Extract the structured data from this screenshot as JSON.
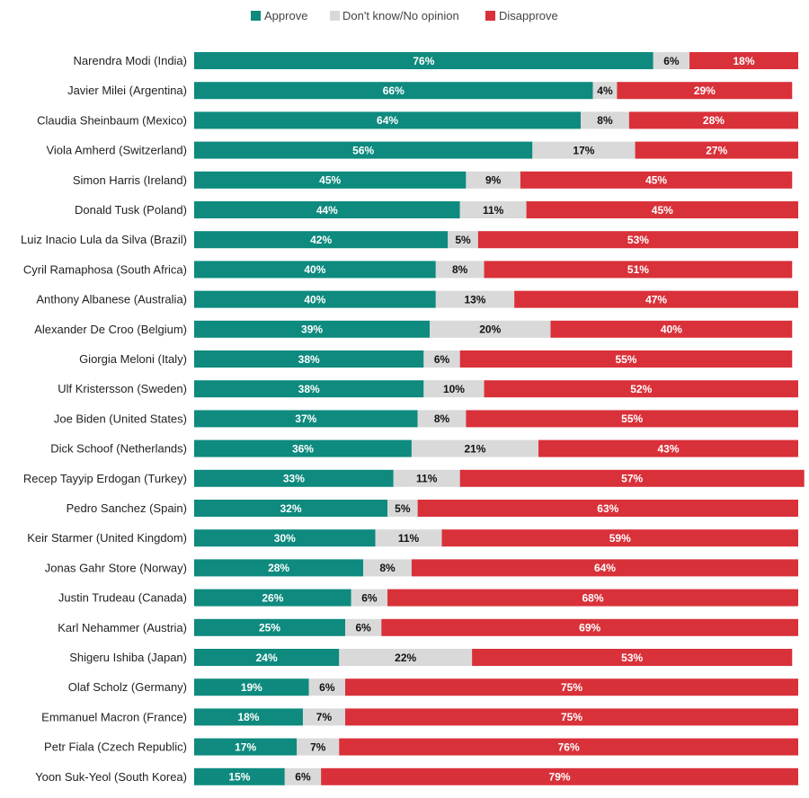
{
  "chart_data": {
    "type": "bar",
    "orientation": "horizontal",
    "stacked": true,
    "legend_position": "top",
    "grid": false,
    "xlim": [
      0,
      100
    ],
    "unit": "%",
    "categories": [
      "Narendra Modi (India)",
      "Javier Milei (Argentina)",
      "Claudia Sheinbaum (Mexico)",
      "Viola Amherd (Switzerland)",
      "Simon Harris (Ireland)",
      "Donald Tusk (Poland)",
      "Luiz Inacio Lula da Silva (Brazil)",
      "Cyril Ramaphosa (South Africa)",
      "Anthony Albanese (Australia)",
      "Alexander De Croo (Belgium)",
      "Giorgia Meloni (Italy)",
      "Ulf Kristersson (Sweden)",
      "Joe Biden (United States)",
      "Dick Schoof (Netherlands)",
      "Recep Tayyip Erdogan (Turkey)",
      "Pedro Sanchez (Spain)",
      "Keir Starmer (United Kingdom)",
      "Jonas Gahr Store (Norway)",
      "Justin Trudeau (Canada)",
      "Karl Nehammer (Austria)",
      "Shigeru Ishiba (Japan)",
      "Olaf Scholz (Germany)",
      "Emmanuel Macron (France)",
      "Petr Fiala (Czech Republic)",
      "Yoon Suk-Yeol (South Korea)"
    ],
    "series": [
      {
        "name": "Approve",
        "color": "#0e8a7e",
        "text_color": "#ffffff",
        "values": [
          76,
          66,
          64,
          56,
          45,
          44,
          42,
          40,
          40,
          39,
          38,
          38,
          37,
          36,
          33,
          32,
          30,
          28,
          26,
          25,
          24,
          19,
          18,
          17,
          15
        ]
      },
      {
        "name": "Don't know/No opinion",
        "color": "#d9d9d9",
        "text_color": "#111111",
        "values": [
          6,
          4,
          8,
          17,
          9,
          11,
          5,
          8,
          13,
          20,
          6,
          10,
          8,
          21,
          11,
          5,
          11,
          8,
          6,
          6,
          22,
          6,
          7,
          7,
          6
        ]
      },
      {
        "name": "Disapprove",
        "color": "#d9313a",
        "text_color": "#ffffff",
        "values": [
          18,
          29,
          28,
          27,
          45,
          45,
          53,
          51,
          47,
          40,
          55,
          52,
          55,
          43,
          57,
          63,
          59,
          64,
          68,
          69,
          53,
          75,
          75,
          76,
          79
        ]
      }
    ]
  }
}
